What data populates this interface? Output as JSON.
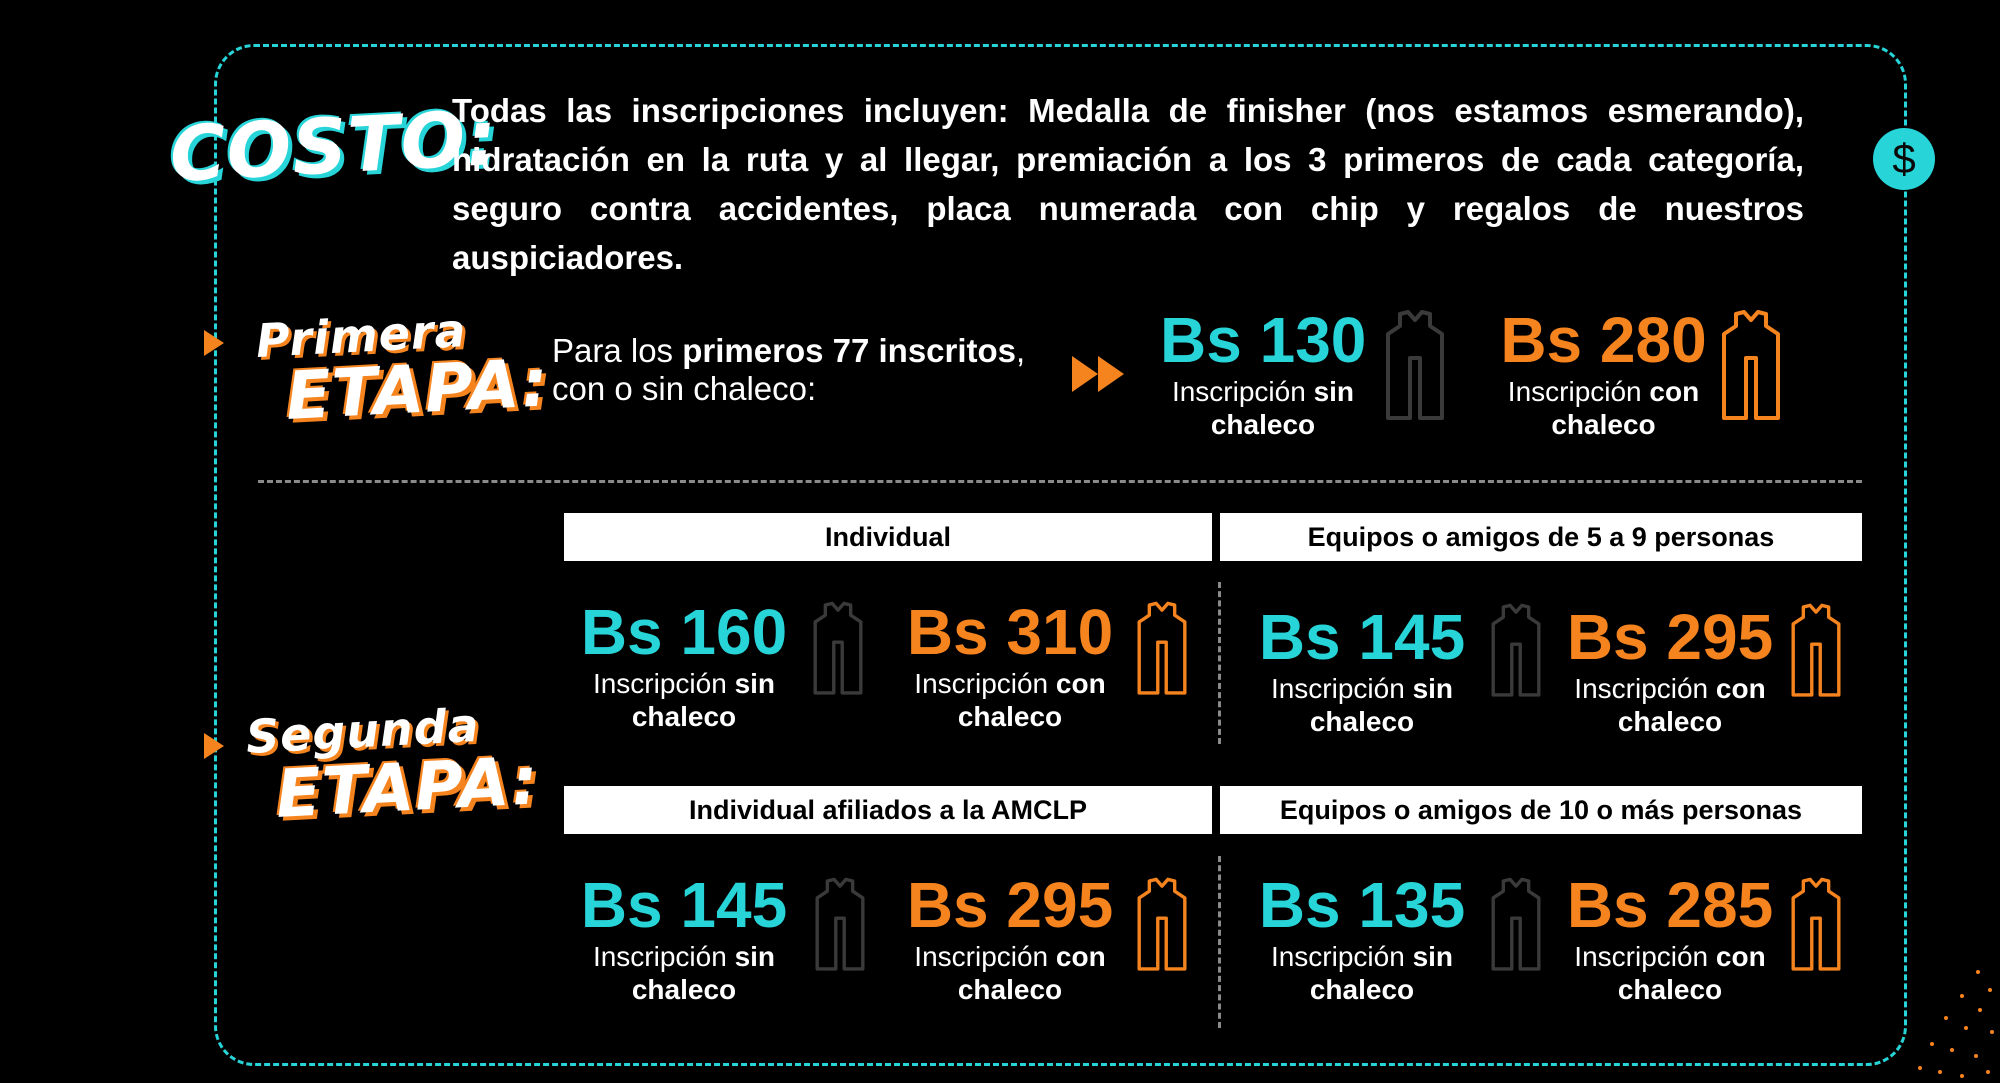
{
  "costo": {
    "title": "COSTO:",
    "description": "Todas las inscripciones incluyen: Medalla de finisher (nos estamos esmerando), hidratación en la ruta y al llegar, premiación a los 3 primeros de cada categoría, seguro contra accidentes, placa numerada con chip y regalos de nuestros auspiciadores."
  },
  "colors": {
    "accent_cyan": "#27d4d8",
    "accent_orange": "#f5841f",
    "background": "#000000"
  },
  "icons": [
    "dollar-icon",
    "fast-forward-icon",
    "vest-icon",
    "play-marker-icon"
  ],
  "etapa1": {
    "title_top": "Primera",
    "title_bottom": "ETAPA:",
    "text_pre": "Para los ",
    "text_bold": "primeros 77 inscritos",
    "text_post": ",",
    "text_line2": "con o sin chaleco:",
    "sin_price": "Bs 130",
    "con_price": "Bs 280"
  },
  "labels": {
    "inscripcion": "Inscripción",
    "sin": "sin",
    "con": "con",
    "chaleco": "chaleco"
  },
  "etapa2": {
    "title_top": "Segunda",
    "title_bottom": "ETAPA:",
    "groups": [
      {
        "header": "Individual",
        "sin_price": "Bs 160",
        "con_price": "Bs 310"
      },
      {
        "header": "Equipos o amigos de 5 a 9 personas",
        "sin_price": "Bs 145",
        "con_price": "Bs 295"
      },
      {
        "header": "Individual afiliados a la AMCLP",
        "sin_price": "Bs 145",
        "con_price": "Bs 295"
      },
      {
        "header": "Equipos o amigos de 10 o más personas",
        "sin_price": "Bs 135",
        "con_price": "Bs 285"
      }
    ]
  }
}
